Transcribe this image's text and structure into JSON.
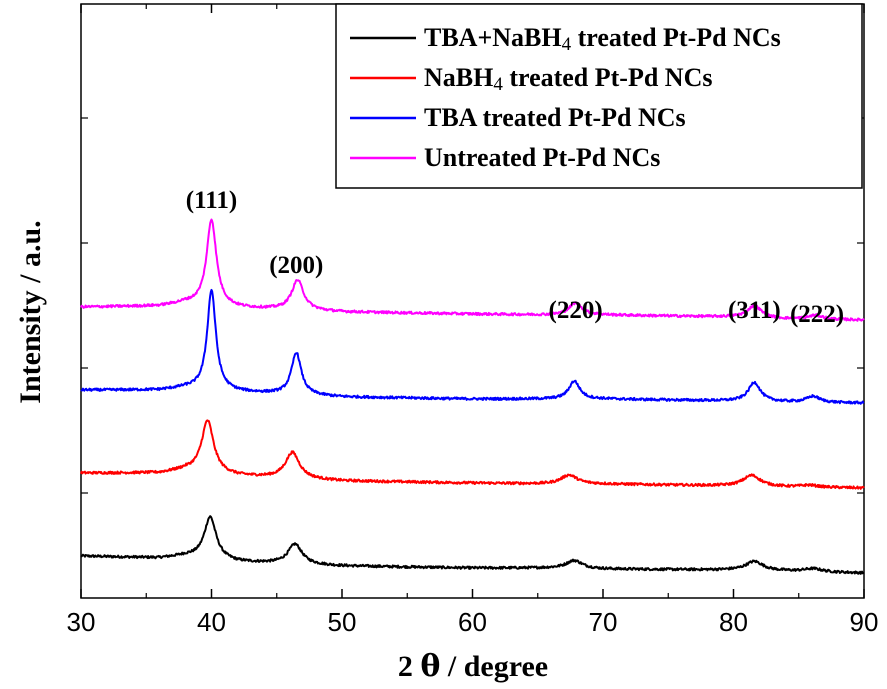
{
  "chart_data": {
    "type": "line",
    "title": "",
    "xlabel_main": "2 ",
    "xlabel_symbol": "θ",
    "xlabel_rest": " / degree",
    "ylabel": "Intensity / a.u.",
    "xlim": [
      30,
      90
    ],
    "xticks": [
      "30",
      "40",
      "50",
      "60",
      "70",
      "80",
      "90"
    ],
    "yticks_shown": false,
    "grid": false,
    "legend_position": "top-right",
    "peak_labels": [
      {
        "text": "(111)",
        "x": 40.0,
        "y": 390
      },
      {
        "text": "(200)",
        "x": 46.5,
        "y": 325
      },
      {
        "text": "(220)",
        "x": 67.9,
        "y": 280
      },
      {
        "text": "(311)",
        "x": 81.6,
        "y": 280
      },
      {
        "text": "(222)",
        "x": 86.4,
        "y": 276
      }
    ],
    "series": [
      {
        "name": "TBA+NaBH",
        "name_sub": "4",
        "name_rest": " treated Pt-Pd NCs",
        "color": "#000000",
        "baseline": [
          [
            30,
            42
          ],
          [
            36,
            40
          ],
          [
            38,
            42
          ],
          [
            42,
            36
          ],
          [
            50,
            32
          ],
          [
            60,
            30
          ],
          [
            66,
            30
          ],
          [
            70,
            29
          ],
          [
            80,
            28
          ],
          [
            84,
            27
          ],
          [
            90,
            25
          ]
        ],
        "peaks": [
          [
            39.9,
            42,
            0.55
          ],
          [
            46.4,
            20,
            0.65
          ],
          [
            67.8,
            8,
            0.75
          ],
          [
            81.6,
            9,
            0.8
          ],
          [
            86.1,
            3,
            0.8
          ]
        ]
      },
      {
        "name": "NaBH",
        "name_sub": "4",
        "name_rest": " treated Pt-Pd NCs",
        "color": "#ff0000",
        "baseline": [
          [
            30,
            125
          ],
          [
            36,
            125
          ],
          [
            38,
            128
          ],
          [
            42,
            122
          ],
          [
            50,
            117
          ],
          [
            60,
            115
          ],
          [
            66,
            114
          ],
          [
            70,
            114
          ],
          [
            80,
            112
          ],
          [
            84,
            111
          ],
          [
            90,
            110
          ]
        ],
        "peaks": [
          [
            39.7,
            52,
            0.55
          ],
          [
            46.2,
            26,
            0.65
          ],
          [
            67.4,
            9,
            0.75
          ],
          [
            81.4,
            11,
            0.8
          ],
          [
            85.8,
            2,
            0.8
          ]
        ]
      },
      {
        "name": "TBA treated Pt-Pd NCs",
        "name_sub": "",
        "name_rest": "",
        "color": "#0000ff",
        "baseline": [
          [
            30,
            208
          ],
          [
            36,
            208
          ],
          [
            38,
            210
          ],
          [
            42,
            206
          ],
          [
            50,
            201
          ],
          [
            60,
            199
          ],
          [
            66,
            199
          ],
          [
            70,
            199
          ],
          [
            80,
            197
          ],
          [
            84,
            196
          ],
          [
            90,
            195
          ]
        ],
        "peaks": [
          [
            40.0,
            100,
            0.4
          ],
          [
            46.5,
            42,
            0.45
          ],
          [
            67.8,
            18,
            0.5
          ],
          [
            81.6,
            19,
            0.55
          ],
          [
            86.1,
            6,
            0.6
          ]
        ]
      },
      {
        "name": "Untreated Pt-Pd NCs",
        "name_sub": "",
        "name_rest": "",
        "color": "#ff00ff",
        "baseline": [
          [
            30,
            291
          ],
          [
            36,
            292
          ],
          [
            38,
            295
          ],
          [
            42,
            290
          ],
          [
            50,
            286
          ],
          [
            60,
            284
          ],
          [
            66,
            283
          ],
          [
            70,
            283
          ],
          [
            80,
            281
          ],
          [
            84,
            279
          ],
          [
            90,
            278
          ]
        ],
        "peaks": [
          [
            40.0,
            86,
            0.45
          ],
          [
            46.6,
            30,
            0.55
          ],
          [
            67.9,
            12,
            0.6
          ],
          [
            81.6,
            12,
            0.65
          ],
          [
            86.3,
            4,
            0.7
          ]
        ]
      }
    ]
  }
}
